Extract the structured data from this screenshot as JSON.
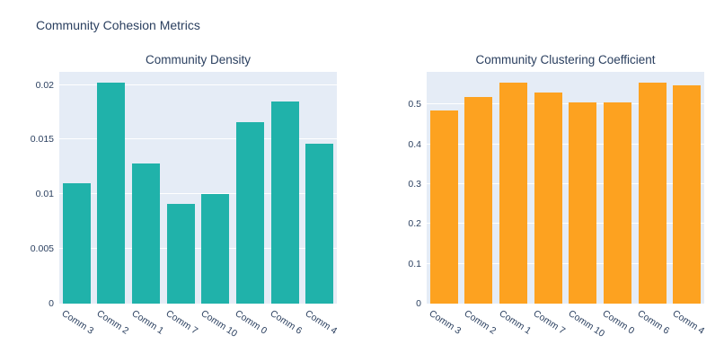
{
  "figure": {
    "title": "Community Cohesion Metrics"
  },
  "colors": {
    "page_bg": "#ffffff",
    "plot_bg": "#e5ecf6",
    "grid": "#ffffff",
    "text": "#2a3f5f",
    "density_bar": "#20b2aa",
    "clustering_bar": "#fda220"
  },
  "chart_data": [
    {
      "type": "bar",
      "title": "Community Density",
      "categories": [
        "Comm 3",
        "Comm 2",
        "Comm 1",
        "Comm 7",
        "Comm 10",
        "Comm 0",
        "Comm 6",
        "Comm 4"
      ],
      "values": [
        0.011,
        0.0202,
        0.0128,
        0.0091,
        0.01,
        0.0166,
        0.0185,
        0.0146
      ],
      "yticks": [
        0,
        0.005,
        0.01,
        0.015,
        0.02
      ],
      "ytick_labels": [
        "0",
        "0.005",
        "0.01",
        "0.015",
        "0.02"
      ],
      "ylim": [
        0,
        0.0212
      ],
      "xlabel": "",
      "ylabel": "",
      "grid": true,
      "legend": "none",
      "bar_color": "#20b2aa"
    },
    {
      "type": "bar",
      "title": "Community Clustering Coefficient",
      "categories": [
        "Comm 3",
        "Comm 2",
        "Comm 1",
        "Comm 7",
        "Comm 10",
        "Comm 0",
        "Comm 6",
        "Comm 4"
      ],
      "values": [
        0.485,
        0.52,
        0.555,
        0.53,
        0.505,
        0.505,
        0.555,
        0.548
      ],
      "yticks": [
        0,
        0.1,
        0.2,
        0.3,
        0.4,
        0.5
      ],
      "ytick_labels": [
        "0",
        "0.1",
        "0.2",
        "0.3",
        "0.4",
        "0.5"
      ],
      "ylim": [
        0,
        0.582
      ],
      "xlabel": "",
      "ylabel": "",
      "grid": true,
      "legend": "none",
      "bar_color": "#fda220"
    }
  ]
}
